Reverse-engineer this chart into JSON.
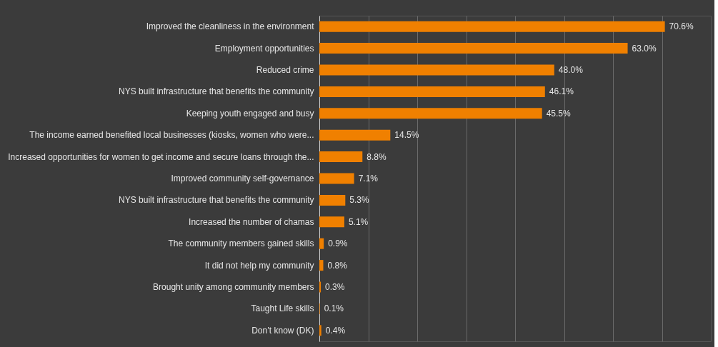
{
  "chart_data": {
    "type": "bar",
    "orientation": "horizontal",
    "categories": [
      "Improved the cleanliness in the environment",
      "Employment opportunities",
      "Reduced crime",
      "NYS built infrastructure that benefits the community",
      "Keeping youth engaged and busy",
      "The income earned benefited local businesses (kiosks, women who were...",
      "Increased opportunities for women to get income and secure loans through the...",
      "Improved community self-governance",
      "NYS built infrastructure that benefits the community",
      "Increased the number of chamas",
      "The community members gained skills",
      "It did not help my community",
      "Brought unity among community members",
      "Taught Life skills",
      "Don’t know (DK)"
    ],
    "values": [
      70.6,
      63.0,
      48.0,
      46.1,
      45.5,
      14.5,
      8.8,
      7.1,
      5.3,
      5.1,
      0.9,
      0.8,
      0.3,
      0.1,
      0.4
    ],
    "value_labels": [
      "70.6%",
      "63.0%",
      "48.0%",
      "46.1%",
      "45.5%",
      "14.5%",
      "8.8%",
      "7.1%",
      "5.3%",
      "5.1%",
      "0.9%",
      "0.8%",
      "0.3%",
      "0.1%",
      "0.4%"
    ],
    "color": "#f08000",
    "xlim": [
      0,
      80
    ],
    "xticks": [
      {
        "value": 0,
        "label": null
      },
      {
        "value": 10,
        "label": null
      },
      {
        "value": 20,
        "label": null
      },
      {
        "value": 30,
        "label": null
      },
      {
        "value": 40,
        "label": null
      },
      {
        "value": 50,
        "label": null
      },
      {
        "value": 60,
        "label": null
      },
      {
        "value": 70,
        "label": null
      }
    ],
    "grid": "x",
    "tick_labels": "y"
  }
}
